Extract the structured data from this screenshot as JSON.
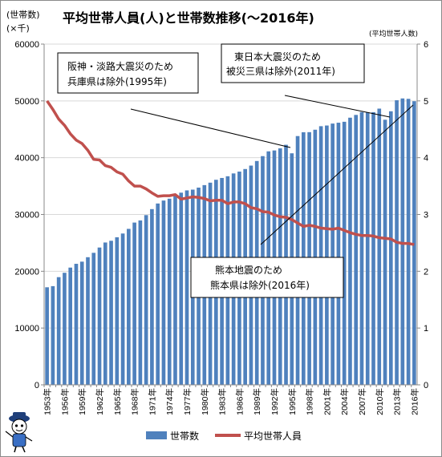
{
  "title": "平均世帯人員(人)と世帯数推移(〜2016年)",
  "y_left_unit": [
    "(世帯数)",
    "(×千)"
  ],
  "y_right_unit": "(平均世帯人数)",
  "annotations": [
    {
      "lines": [
        "阪神・淡路大震災のため",
        "兵庫県は除外(1995年)"
      ]
    },
    {
      "lines": [
        "東日本大震災のため",
        "被災三県は除外(2011年)"
      ]
    },
    {
      "lines": [
        "熊本地震のため",
        "熊本県は除外(2016年)"
      ]
    }
  ],
  "legend": {
    "households": "世帯数",
    "avg": "平均世帯人員"
  },
  "colors": {
    "bar": "#4f81bd",
    "line": "#c0504d",
    "grid": "#d9d9d9",
    "axis": "#888888"
  },
  "chart_data": {
    "type": "bar",
    "x": [
      1953,
      1954,
      1955,
      1956,
      1957,
      1958,
      1959,
      1960,
      1961,
      1962,
      1963,
      1964,
      1965,
      1966,
      1967,
      1968,
      1969,
      1970,
      1971,
      1972,
      1973,
      1974,
      1975,
      1976,
      1977,
      1978,
      1979,
      1980,
      1981,
      1982,
      1983,
      1984,
      1985,
      1986,
      1987,
      1988,
      1989,
      1990,
      1991,
      1992,
      1993,
      1994,
      1995,
      1996,
      1997,
      1998,
      1999,
      2000,
      2001,
      2002,
      2003,
      2004,
      2005,
      2006,
      2007,
      2008,
      2009,
      2010,
      2011,
      2012,
      2013,
      2014,
      2015,
      2016
    ],
    "x_tick_labels": [
      "1953年",
      "1956年",
      "1959年",
      "1962年",
      "1965年",
      "1968年",
      "1971年",
      "1974年",
      "1977年",
      "1980年",
      "1983年",
      "1986年",
      "1989年",
      "1992年",
      "1995年",
      "1998年",
      "2001年",
      "2004年",
      "2007年",
      "2010年",
      "2013年",
      "2016年"
    ],
    "series": [
      {
        "name": "世帯数",
        "axis": "left",
        "type": "bar",
        "values": [
          17180,
          17380,
          18963,
          19734,
          20647,
          21314,
          21692,
          22475,
          23247,
          24180,
          25065,
          25370,
          25986,
          26646,
          27465,
          28574,
          28949,
          29887,
          30946,
          31931,
          32452,
          32778,
          33309,
          33839,
          34241,
          34374,
          34727,
          35169,
          35601,
          36109,
          36429,
          36730,
          37226,
          37548,
          38005,
          38606,
          39414,
          40273,
          41115,
          41271,
          41641,
          42273,
          40770,
          43806,
          44477,
          44496,
          44923,
          45545,
          45664,
          46006,
          46158,
          46323,
          47043,
          47531,
          48023,
          47958,
          48013,
          48638,
          46684,
          48170,
          50112,
          50431,
          50361,
          49945
        ]
      },
      {
        "name": "平均世帯人員",
        "axis": "right",
        "type": "line",
        "values": [
          5.0,
          4.85,
          4.68,
          4.57,
          4.42,
          4.31,
          4.25,
          4.13,
          3.97,
          3.96,
          3.86,
          3.83,
          3.75,
          3.71,
          3.59,
          3.5,
          3.5,
          3.45,
          3.38,
          3.32,
          3.33,
          3.33,
          3.35,
          3.27,
          3.29,
          3.31,
          3.3,
          3.28,
          3.24,
          3.25,
          3.25,
          3.19,
          3.22,
          3.22,
          3.19,
          3.12,
          3.1,
          3.05,
          3.04,
          2.99,
          2.96,
          2.95,
          2.91,
          2.85,
          2.79,
          2.81,
          2.79,
          2.76,
          2.75,
          2.74,
          2.76,
          2.72,
          2.68,
          2.65,
          2.63,
          2.63,
          2.62,
          2.59,
          2.58,
          2.57,
          2.51,
          2.49,
          2.49,
          2.47
        ]
      }
    ],
    "ylim_left": [
      0,
      60000
    ],
    "yticks_left": [
      0,
      10000,
      20000,
      30000,
      40000,
      50000,
      60000
    ],
    "ylim_right": [
      0,
      6
    ],
    "yticks_right": [
      0,
      1,
      2,
      3,
      4,
      5,
      6
    ],
    "grid": true,
    "legend_position": "bottom"
  }
}
